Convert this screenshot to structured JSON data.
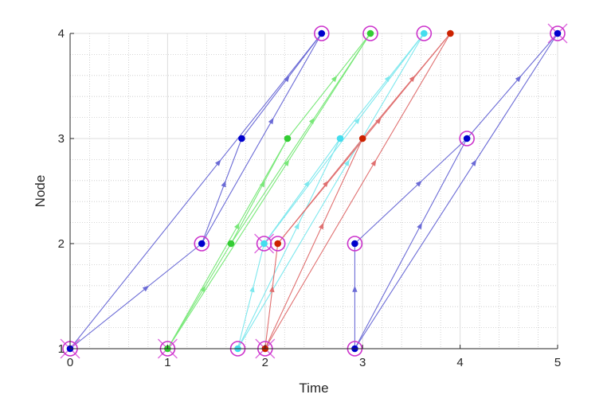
{
  "chart_data": {
    "type": "line",
    "title": "",
    "xlabel": "Time",
    "ylabel": "Node",
    "xlim": [
      0,
      5
    ],
    "ylim": [
      1,
      4
    ],
    "xticks": [
      "0",
      "1",
      "2",
      "3",
      "4",
      "5"
    ],
    "yticks": [
      "1",
      "2",
      "3",
      "4"
    ],
    "grid": true,
    "minor_grid": true,
    "legend": "none",
    "series": [
      {
        "color": "#6b6bd6",
        "dot_color": "#0000cc",
        "segments": [
          [
            [
              0,
              1
            ],
            [
              2.58,
              4
            ]
          ],
          [
            [
              0,
              1
            ],
            [
              1.35,
              2
            ]
          ],
          [
            [
              1.35,
              2
            ],
            [
              1.76,
              3
            ]
          ],
          [
            [
              1.76,
              3
            ],
            [
              2.58,
              4
            ]
          ],
          [
            [
              1.35,
              2
            ],
            [
              2.58,
              4
            ]
          ],
          [
            [
              2.92,
              1
            ],
            [
              2.92,
              2
            ]
          ],
          [
            [
              2.92,
              2
            ],
            [
              4.07,
              3
            ]
          ],
          [
            [
              2.92,
              1
            ],
            [
              4.07,
              3
            ]
          ],
          [
            [
              4.07,
              3
            ],
            [
              5,
              4
            ]
          ],
          [
            [
              2.92,
              1
            ],
            [
              5,
              4
            ]
          ]
        ],
        "points": [
          [
            0,
            1
          ],
          [
            1.35,
            2
          ],
          [
            1.76,
            3
          ],
          [
            2.58,
            4
          ],
          [
            2.92,
            1
          ],
          [
            2.92,
            2
          ],
          [
            4.07,
            3
          ],
          [
            5,
            4
          ]
        ],
        "circled": [
          [
            0,
            1
          ],
          [
            1.35,
            2
          ],
          [
            2.58,
            4
          ],
          [
            2.92,
            1
          ],
          [
            2.92,
            2
          ],
          [
            4.07,
            3
          ],
          [
            5,
            4
          ]
        ],
        "crossed": [
          [
            0,
            1
          ],
          [
            5,
            4
          ]
        ]
      },
      {
        "color": "#79e879",
        "dot_color": "#33cc33",
        "segments": [
          [
            [
              1,
              1
            ],
            [
              1.65,
              2
            ]
          ],
          [
            [
              1.65,
              2
            ],
            [
              2.23,
              3
            ]
          ],
          [
            [
              2.23,
              3
            ],
            [
              3.08,
              4
            ]
          ],
          [
            [
              1,
              1
            ],
            [
              2.23,
              3
            ]
          ],
          [
            [
              1,
              1
            ],
            [
              3.08,
              4
            ]
          ],
          [
            [
              1.65,
              2
            ],
            [
              3.08,
              4
            ]
          ]
        ],
        "points": [
          [
            1,
            1
          ],
          [
            1.65,
            2
          ],
          [
            2.23,
            3
          ],
          [
            3.08,
            4
          ]
        ],
        "circled": [
          [
            1,
            1
          ],
          [
            3.08,
            4
          ]
        ],
        "crossed": [
          [
            1,
            1
          ]
        ]
      },
      {
        "color": "#7ee8ee",
        "dot_color": "#44ddee",
        "segments": [
          [
            [
              1.72,
              1
            ],
            [
              1.99,
              2
            ]
          ],
          [
            [
              1.99,
              2
            ],
            [
              2.77,
              3
            ]
          ],
          [
            [
              2.77,
              3
            ],
            [
              3.63,
              4
            ]
          ],
          [
            [
              1.72,
              1
            ],
            [
              2.77,
              3
            ]
          ],
          [
            [
              1.72,
              1
            ],
            [
              3.63,
              4
            ]
          ],
          [
            [
              1.99,
              2
            ],
            [
              3.63,
              4
            ]
          ]
        ],
        "points": [
          [
            1.72,
            1
          ],
          [
            1.99,
            2
          ],
          [
            2.77,
            3
          ],
          [
            3.63,
            4
          ]
        ],
        "circled": [
          [
            1.72,
            1
          ],
          [
            1.99,
            2
          ],
          [
            3.63,
            4
          ]
        ],
        "crossed": [
          [
            1.99,
            2
          ]
        ]
      },
      {
        "color": "#e07070",
        "dot_color": "#cc2200",
        "segments": [
          [
            [
              2,
              1
            ],
            [
              2.13,
              2
            ]
          ],
          [
            [
              2.13,
              2
            ],
            [
              3,
              3
            ]
          ],
          [
            [
              3,
              3
            ],
            [
              3.9,
              4
            ]
          ],
          [
            [
              2,
              1
            ],
            [
              3,
              3
            ]
          ],
          [
            [
              2,
              1
            ],
            [
              3.9,
              4
            ]
          ],
          [
            [
              2.13,
              2
            ],
            [
              3.9,
              4
            ]
          ]
        ],
        "points": [
          [
            2,
            1
          ],
          [
            2.13,
            2
          ],
          [
            3,
            3
          ],
          [
            3.9,
            4
          ]
        ],
        "circled": [
          [
            2,
            1
          ],
          [
            2.13,
            2
          ]
        ],
        "crossed": [
          [
            2,
            1
          ]
        ]
      }
    ]
  }
}
